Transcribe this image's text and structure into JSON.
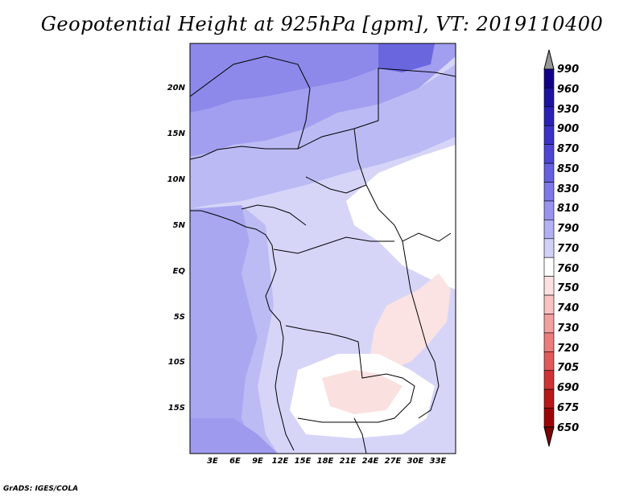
{
  "title": "Geopotential Height at 925hPa [gpm], VT: 2019110400",
  "credit": "GrADS: IGES/COLA",
  "lat_labels": [
    "20N",
    "15N",
    "10N",
    "5N",
    "EQ",
    "5S",
    "10S",
    "15S"
  ],
  "lon_labels": [
    "3E",
    "6E",
    "9E",
    "12E",
    "15E",
    "18E",
    "21E",
    "24E",
    "27E",
    "30E",
    "33E"
  ],
  "colorbar": {
    "levels": [
      "990",
      "960",
      "930",
      "900",
      "870",
      "850",
      "830",
      "810",
      "790",
      "770",
      "760",
      "750",
      "740",
      "730",
      "720",
      "705",
      "690",
      "675",
      "650"
    ],
    "colors": [
      "#989898",
      "#120086",
      "#1c139e",
      "#2a21b4",
      "#3b32c6",
      "#4e46d3",
      "#6560dd",
      "#7d79e6",
      "#9894ee",
      "#b3b1f3",
      "#d1d0f8",
      "#ffffff",
      "#fde0e0",
      "#f9c2c2",
      "#f2a0a0",
      "#ea7c7c",
      "#e05a5a",
      "#cf3434",
      "#b81818",
      "#9c0606",
      "#7f0000"
    ]
  }
}
